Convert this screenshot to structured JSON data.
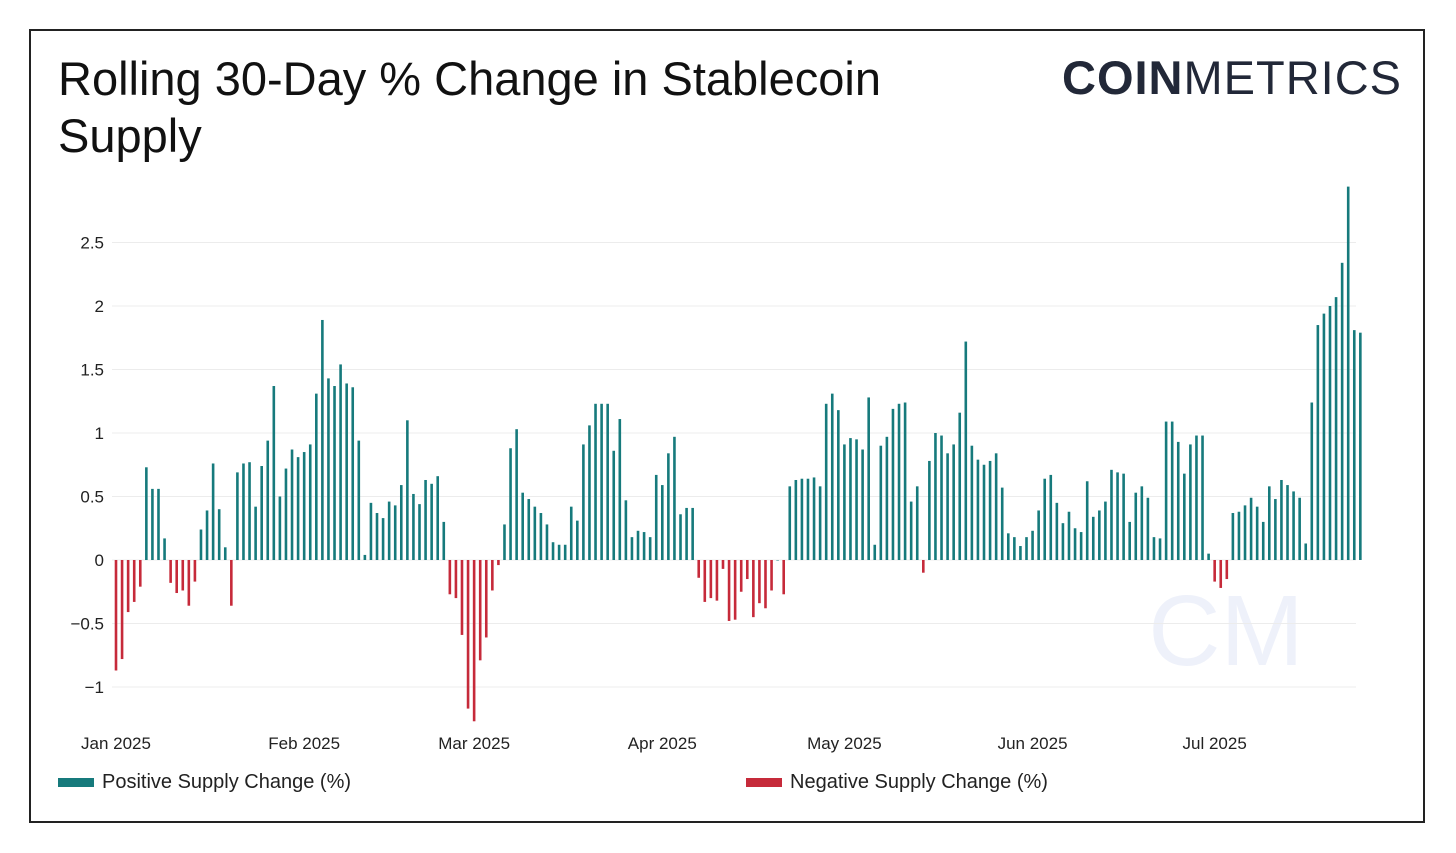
{
  "title": "Rolling 30-Day % Change in Stablecoin Supply",
  "logo": {
    "bold": "COIN",
    "light": "METRICS",
    "watermark": "CM"
  },
  "colors": {
    "positive": "#167a7c",
    "negative": "#c62a3a",
    "grid": "#ececec"
  },
  "chart_data": {
    "type": "bar",
    "title": "Rolling 30-Day % Change in Stablecoin Supply",
    "x_start": "2025-01-01",
    "x_unit": "day",
    "x_ticks": [
      {
        "day": 0,
        "label": "Jan 2025"
      },
      {
        "day": 31,
        "label": "Feb 2025"
      },
      {
        "day": 59,
        "label": "Mar 2025"
      },
      {
        "day": 90,
        "label": "Apr 2025"
      },
      {
        "day": 120,
        "label": "May 2025"
      },
      {
        "day": 151,
        "label": "Jun 2025"
      },
      {
        "day": 181,
        "label": "Jul 2025"
      }
    ],
    "y_ticks": [
      {
        "v": -1,
        "label": "−1"
      },
      {
        "v": -0.5,
        "label": "−0.5"
      },
      {
        "v": 0,
        "label": "0"
      },
      {
        "v": 0.5,
        "label": "0.5"
      },
      {
        "v": 1,
        "label": "1"
      },
      {
        "v": 1.5,
        "label": "1.5"
      },
      {
        "v": 2,
        "label": "2"
      },
      {
        "v": 2.5,
        "label": "2.5"
      }
    ],
    "ylim": [
      -1.35,
      3.0
    ],
    "grid": true,
    "legend_placement": "bottom",
    "series": [
      {
        "name": "Positive Supply Change (%)",
        "rule": "value >= 0"
      },
      {
        "name": "Negative Supply Change (%)",
        "rule": "value < 0"
      }
    ],
    "values": [
      -0.87,
      -0.78,
      -0.41,
      -0.33,
      -0.21,
      0.73,
      0.56,
      0.56,
      0.17,
      -0.18,
      -0.26,
      -0.24,
      -0.36,
      -0.17,
      0.24,
      0.39,
      0.76,
      0.4,
      0.1,
      -0.36,
      0.69,
      0.76,
      0.77,
      0.42,
      0.74,
      0.94,
      1.37,
      0.5,
      0.72,
      0.87,
      0.81,
      0.85,
      0.91,
      1.31,
      1.89,
      1.43,
      1.37,
      1.54,
      1.39,
      1.36,
      0.94,
      0.04,
      0.45,
      0.37,
      0.33,
      0.46,
      0.43,
      0.59,
      1.1,
      0.52,
      0.44,
      0.63,
      0.6,
      0.66,
      0.3,
      -0.27,
      -0.3,
      -0.59,
      -1.17,
      -1.27,
      -0.79,
      -0.61,
      -0.24,
      -0.04,
      0.28,
      0.88,
      1.03,
      0.53,
      0.48,
      0.42,
      0.37,
      0.28,
      0.14,
      0.12,
      0.12,
      0.42,
      0.31,
      0.91,
      1.06,
      1.23,
      1.23,
      1.23,
      0.86,
      1.11,
      0.47,
      0.18,
      0.23,
      0.22,
      0.18,
      0.67,
      0.59,
      0.84,
      0.97,
      0.36,
      0.41,
      0.41,
      -0.14,
      -0.33,
      -0.3,
      -0.32,
      -0.07,
      -0.48,
      -0.47,
      -0.25,
      -0.15,
      -0.45,
      -0.34,
      -0.38,
      -0.24,
      0.0,
      -0.27,
      0.58,
      0.63,
      0.64,
      0.64,
      0.65,
      0.58,
      1.23,
      1.31,
      1.18,
      0.91,
      0.96,
      0.95,
      0.87,
      1.28,
      0.12,
      0.9,
      0.97,
      1.19,
      1.23,
      1.24,
      0.46,
      0.58,
      -0.1,
      0.78,
      1.0,
      0.98,
      0.84,
      0.91,
      1.16,
      1.72,
      0.9,
      0.79,
      0.75,
      0.78,
      0.84,
      0.57,
      0.21,
      0.18,
      0.11,
      0.18,
      0.23,
      0.39,
      0.64,
      0.67,
      0.45,
      0.29,
      0.38,
      0.25,
      0.22,
      0.62,
      0.34,
      0.39,
      0.46,
      0.71,
      0.69,
      0.68,
      0.3,
      0.53,
      0.58,
      0.49,
      0.18,
      0.17,
      1.09,
      1.09,
      0.93,
      0.68,
      0.91,
      0.98,
      0.98,
      0.05,
      -0.17,
      -0.22,
      -0.15,
      0.37,
      0.38,
      0.43,
      0.49,
      0.42,
      0.3,
      0.58,
      0.48,
      0.63,
      0.59,
      0.54,
      0.49,
      0.13,
      1.24,
      1.85,
      1.94,
      2.0,
      2.07,
      2.34,
      2.94,
      1.81,
      1.79
    ]
  }
}
